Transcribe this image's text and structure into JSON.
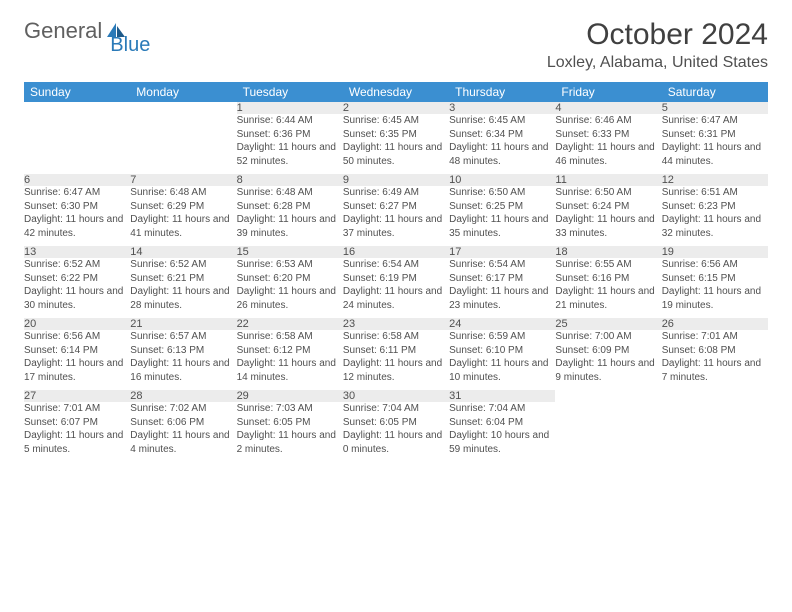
{
  "logo": {
    "text1": "General",
    "text2": "Blue"
  },
  "title": "October 2024",
  "subtitle": "Loxley, Alabama, United States",
  "header_bg": "#3b8fd1",
  "daynum_bg": "#ececec",
  "sep_color": "#2a6aa0",
  "dayNames": [
    "Sunday",
    "Monday",
    "Tuesday",
    "Wednesday",
    "Thursday",
    "Friday",
    "Saturday"
  ],
  "weeks": [
    [
      null,
      null,
      {
        "num": "1",
        "sunrise": "6:44 AM",
        "sunset": "6:36 PM",
        "daylight": "11 hours and 52 minutes."
      },
      {
        "num": "2",
        "sunrise": "6:45 AM",
        "sunset": "6:35 PM",
        "daylight": "11 hours and 50 minutes."
      },
      {
        "num": "3",
        "sunrise": "6:45 AM",
        "sunset": "6:34 PM",
        "daylight": "11 hours and 48 minutes."
      },
      {
        "num": "4",
        "sunrise": "6:46 AM",
        "sunset": "6:33 PM",
        "daylight": "11 hours and 46 minutes."
      },
      {
        "num": "5",
        "sunrise": "6:47 AM",
        "sunset": "6:31 PM",
        "daylight": "11 hours and 44 minutes."
      }
    ],
    [
      {
        "num": "6",
        "sunrise": "6:47 AM",
        "sunset": "6:30 PM",
        "daylight": "11 hours and 42 minutes."
      },
      {
        "num": "7",
        "sunrise": "6:48 AM",
        "sunset": "6:29 PM",
        "daylight": "11 hours and 41 minutes."
      },
      {
        "num": "8",
        "sunrise": "6:48 AM",
        "sunset": "6:28 PM",
        "daylight": "11 hours and 39 minutes."
      },
      {
        "num": "9",
        "sunrise": "6:49 AM",
        "sunset": "6:27 PM",
        "daylight": "11 hours and 37 minutes."
      },
      {
        "num": "10",
        "sunrise": "6:50 AM",
        "sunset": "6:25 PM",
        "daylight": "11 hours and 35 minutes."
      },
      {
        "num": "11",
        "sunrise": "6:50 AM",
        "sunset": "6:24 PM",
        "daylight": "11 hours and 33 minutes."
      },
      {
        "num": "12",
        "sunrise": "6:51 AM",
        "sunset": "6:23 PM",
        "daylight": "11 hours and 32 minutes."
      }
    ],
    [
      {
        "num": "13",
        "sunrise": "6:52 AM",
        "sunset": "6:22 PM",
        "daylight": "11 hours and 30 minutes."
      },
      {
        "num": "14",
        "sunrise": "6:52 AM",
        "sunset": "6:21 PM",
        "daylight": "11 hours and 28 minutes."
      },
      {
        "num": "15",
        "sunrise": "6:53 AM",
        "sunset": "6:20 PM",
        "daylight": "11 hours and 26 minutes."
      },
      {
        "num": "16",
        "sunrise": "6:54 AM",
        "sunset": "6:19 PM",
        "daylight": "11 hours and 24 minutes."
      },
      {
        "num": "17",
        "sunrise": "6:54 AM",
        "sunset": "6:17 PM",
        "daylight": "11 hours and 23 minutes."
      },
      {
        "num": "18",
        "sunrise": "6:55 AM",
        "sunset": "6:16 PM",
        "daylight": "11 hours and 21 minutes."
      },
      {
        "num": "19",
        "sunrise": "6:56 AM",
        "sunset": "6:15 PM",
        "daylight": "11 hours and 19 minutes."
      }
    ],
    [
      {
        "num": "20",
        "sunrise": "6:56 AM",
        "sunset": "6:14 PM",
        "daylight": "11 hours and 17 minutes."
      },
      {
        "num": "21",
        "sunrise": "6:57 AM",
        "sunset": "6:13 PM",
        "daylight": "11 hours and 16 minutes."
      },
      {
        "num": "22",
        "sunrise": "6:58 AM",
        "sunset": "6:12 PM",
        "daylight": "11 hours and 14 minutes."
      },
      {
        "num": "23",
        "sunrise": "6:58 AM",
        "sunset": "6:11 PM",
        "daylight": "11 hours and 12 minutes."
      },
      {
        "num": "24",
        "sunrise": "6:59 AM",
        "sunset": "6:10 PM",
        "daylight": "11 hours and 10 minutes."
      },
      {
        "num": "25",
        "sunrise": "7:00 AM",
        "sunset": "6:09 PM",
        "daylight": "11 hours and 9 minutes."
      },
      {
        "num": "26",
        "sunrise": "7:01 AM",
        "sunset": "6:08 PM",
        "daylight": "11 hours and 7 minutes."
      }
    ],
    [
      {
        "num": "27",
        "sunrise": "7:01 AM",
        "sunset": "6:07 PM",
        "daylight": "11 hours and 5 minutes."
      },
      {
        "num": "28",
        "sunrise": "7:02 AM",
        "sunset": "6:06 PM",
        "daylight": "11 hours and 4 minutes."
      },
      {
        "num": "29",
        "sunrise": "7:03 AM",
        "sunset": "6:05 PM",
        "daylight": "11 hours and 2 minutes."
      },
      {
        "num": "30",
        "sunrise": "7:04 AM",
        "sunset": "6:05 PM",
        "daylight": "11 hours and 0 minutes."
      },
      {
        "num": "31",
        "sunrise": "7:04 AM",
        "sunset": "6:04 PM",
        "daylight": "10 hours and 59 minutes."
      },
      null,
      null
    ]
  ]
}
